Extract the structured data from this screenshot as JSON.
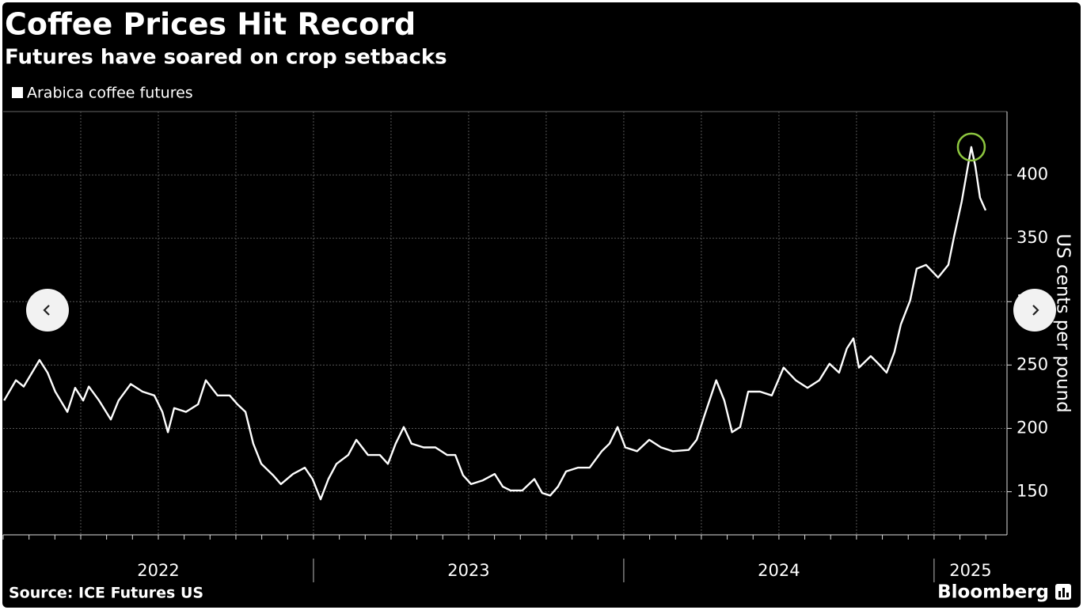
{
  "chart_data": {
    "type": "line",
    "title": "Coffee Prices Hit Record",
    "subtitle": "Futures have soared on crop setbacks",
    "y_label": "US cents per pound",
    "source": "Source: ICE Futures US",
    "brand": "Bloomberg",
    "xlim": [
      2022,
      2025.235
    ],
    "xticks": [
      2022,
      2023,
      2024,
      2025
    ],
    "ylim": [
      116,
      450
    ],
    "yticks": [
      150,
      200,
      250,
      300,
      350,
      400
    ],
    "grid": true,
    "highlight_color": "#8dc63f",
    "series": [
      {
        "name": "Arabica coffee futures",
        "color": "#ffffff",
        "x": [
          2022.003,
          2022.041,
          2022.066,
          2022.105,
          2022.117,
          2022.143,
          2022.168,
          2022.207,
          2022.232,
          2022.258,
          2022.276,
          2022.309,
          2022.347,
          2022.372,
          2022.411,
          2022.449,
          2022.487,
          2022.513,
          2022.531,
          2022.551,
          2022.589,
          2022.628,
          2022.653,
          2022.691,
          2022.73,
          2022.755,
          2022.781,
          2022.806,
          2022.832,
          2022.87,
          2022.895,
          2022.934,
          2022.972,
          2022.997,
          2023.023,
          2023.048,
          2023.074,
          2023.112,
          2023.138,
          2023.176,
          2023.214,
          2023.24,
          2023.265,
          2023.291,
          2023.316,
          2023.355,
          2023.393,
          2023.431,
          2023.457,
          2023.482,
          2023.508,
          2023.546,
          2023.584,
          2023.61,
          2023.635,
          2023.673,
          2023.712,
          2023.737,
          2023.763,
          2023.788,
          2023.814,
          2023.852,
          2023.89,
          2023.929,
          2023.954,
          2023.98,
          2024.005,
          2024.043,
          2024.082,
          2024.12,
          2024.158,
          2024.209,
          2024.235,
          2024.26,
          2024.298,
          2024.324,
          2024.349,
          2024.375,
          2024.401,
          2024.439,
          2024.477,
          2024.515,
          2024.554,
          2024.592,
          2024.63,
          2024.663,
          2024.694,
          2024.719,
          2024.74,
          2024.758,
          2024.796,
          2024.821,
          2024.847,
          2024.872,
          2024.893,
          2024.923,
          2024.944,
          2024.974,
          2025.013,
          2025.046,
          2025.064,
          2025.089,
          2025.107,
          2025.12,
          2025.133,
          2025.148,
          2025.166
        ],
        "values": [
          222,
          238,
          233,
          249,
          254,
          244,
          229,
          213,
          232,
          222,
          233,
          222,
          207,
          222,
          235,
          229,
          226,
          213,
          197,
          216,
          213,
          219,
          238,
          226,
          226,
          219,
          213,
          188,
          172,
          163,
          156,
          164,
          169,
          160,
          144,
          160,
          172,
          179,
          191,
          179,
          179,
          172,
          188,
          201,
          188,
          185,
          185,
          179,
          179,
          163,
          156,
          159,
          164,
          154,
          151,
          151,
          160,
          149,
          147,
          154,
          166,
          169,
          169,
          182,
          188,
          201,
          185,
          182,
          191,
          185,
          182,
          183,
          191,
          210,
          238,
          222,
          197,
          201,
          229,
          229,
          226,
          248,
          238,
          232,
          238,
          251,
          244,
          263,
          271,
          248,
          257,
          251,
          244,
          260,
          282,
          301,
          326,
          329,
          319,
          329,
          351,
          379,
          404,
          422,
          407,
          382,
          372
        ]
      }
    ]
  }
}
